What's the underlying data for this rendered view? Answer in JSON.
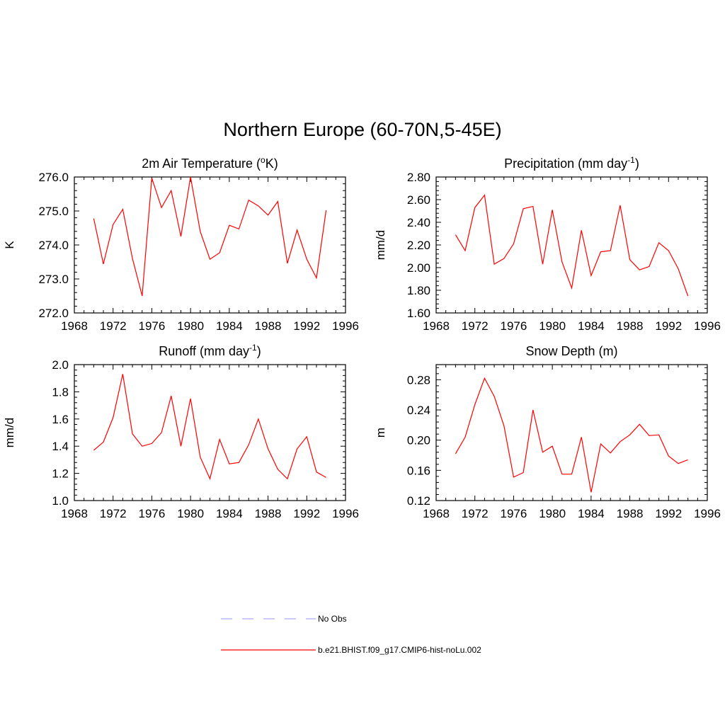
{
  "title": "Northern Europe (60-70N,5-45E)",
  "legend": [
    {
      "label": "No Obs",
      "color": "#aaaaff",
      "dash": true
    },
    {
      "label": "b.e21.BHIST.f09_g17.CMIP6-hist-noLu.002",
      "color": "#ff0000",
      "dash": false
    }
  ],
  "chart_data": [
    {
      "type": "line",
      "title": "2m Air Temperature (",
      "title_sup": "o",
      "title_tail": "K)",
      "ylabel": "K",
      "xlim": [
        1968,
        1996
      ],
      "ylim": [
        272.0,
        276.0
      ],
      "yticks": [
        272.0,
        273.0,
        274.0,
        275.0,
        276.0
      ],
      "ytick_labels": [
        "272.0",
        "273.0",
        "274.0",
        "275.0",
        "276.0"
      ],
      "xticks": [
        1968,
        1972,
        1976,
        1980,
        1984,
        1988,
        1992,
        1996
      ],
      "series": [
        {
          "color": "#ff0000",
          "x": [
            1970,
            1971,
            1972,
            1973,
            1974,
            1975,
            1976,
            1977,
            1978,
            1979,
            1980,
            1981,
            1982,
            1983,
            1984,
            1985,
            1986,
            1987,
            1988,
            1989,
            1990,
            1991,
            1992,
            1993,
            1994
          ],
          "values": [
            274.78,
            273.44,
            274.6,
            275.05,
            273.6,
            272.5,
            275.97,
            275.1,
            275.6,
            274.25,
            276.0,
            274.4,
            273.58,
            273.77,
            274.58,
            274.47,
            275.32,
            275.15,
            274.88,
            275.28,
            273.46,
            274.44,
            273.58,
            273.03,
            275.02
          ]
        }
      ]
    },
    {
      "type": "line",
      "title": "Precipitation (mm day",
      "title_sup": "-1",
      "title_tail": ")",
      "ylabel": "mm/d",
      "xlim": [
        1968,
        1996
      ],
      "ylim": [
        1.6,
        2.8
      ],
      "yticks": [
        1.6,
        1.8,
        2.0,
        2.2,
        2.4,
        2.6,
        2.8
      ],
      "ytick_labels": [
        "1.60",
        "1.80",
        "2.00",
        "2.20",
        "2.40",
        "2.60",
        "2.80"
      ],
      "xticks": [
        1968,
        1972,
        1976,
        1980,
        1984,
        1988,
        1992,
        1996
      ],
      "series": [
        {
          "color": "#ff0000",
          "x": [
            1970,
            1971,
            1972,
            1973,
            1974,
            1975,
            1976,
            1977,
            1978,
            1979,
            1980,
            1981,
            1982,
            1983,
            1984,
            1985,
            1986,
            1987,
            1988,
            1989,
            1990,
            1991,
            1992,
            1993,
            1994
          ],
          "values": [
            2.29,
            2.15,
            2.53,
            2.64,
            2.03,
            2.08,
            2.21,
            2.52,
            2.54,
            2.03,
            2.51,
            2.05,
            1.82,
            2.33,
            1.93,
            2.14,
            2.15,
            2.55,
            2.07,
            1.98,
            2.01,
            2.22,
            2.15,
            1.99,
            1.75
          ]
        }
      ]
    },
    {
      "type": "line",
      "title": "Runoff (mm day",
      "title_sup": "-1",
      "title_tail": ")",
      "ylabel": "mm/d",
      "xlim": [
        1968,
        1996
      ],
      "ylim": [
        1.0,
        2.0
      ],
      "yticks": [
        1.0,
        1.2,
        1.4,
        1.6,
        1.8,
        2.0
      ],
      "ytick_labels": [
        "1.0",
        "1.2",
        "1.4",
        "1.6",
        "1.8",
        "2.0"
      ],
      "xticks": [
        1968,
        1972,
        1976,
        1980,
        1984,
        1988,
        1992,
        1996
      ],
      "series": [
        {
          "color": "#ff0000",
          "x": [
            1970,
            1971,
            1972,
            1973,
            1974,
            1975,
            1976,
            1977,
            1978,
            1979,
            1980,
            1981,
            1982,
            1983,
            1984,
            1985,
            1986,
            1987,
            1988,
            1989,
            1990,
            1991,
            1992,
            1993,
            1994
          ],
          "values": [
            1.37,
            1.43,
            1.61,
            1.93,
            1.49,
            1.4,
            1.42,
            1.5,
            1.77,
            1.4,
            1.75,
            1.32,
            1.16,
            1.45,
            1.27,
            1.28,
            1.41,
            1.6,
            1.38,
            1.23,
            1.16,
            1.38,
            1.47,
            1.21,
            1.17
          ]
        }
      ]
    },
    {
      "type": "line",
      "title": "Snow Depth (m)",
      "title_sup": "",
      "title_tail": "",
      "ylabel": "m",
      "xlim": [
        1968,
        1996
      ],
      "ylim": [
        0.12,
        0.3
      ],
      "yticks": [
        0.12,
        0.16,
        0.2,
        0.24,
        0.28
      ],
      "ytick_labels": [
        "0.12",
        "0.16",
        "0.20",
        "0.24",
        "0.28"
      ],
      "xticks": [
        1968,
        1972,
        1976,
        1980,
        1984,
        1988,
        1992,
        1996
      ],
      "series": [
        {
          "color": "#ff0000",
          "x": [
            1970,
            1971,
            1972,
            1973,
            1974,
            1975,
            1976,
            1977,
            1978,
            1979,
            1980,
            1981,
            1982,
            1983,
            1984,
            1985,
            1986,
            1987,
            1988,
            1989,
            1990,
            1991,
            1992,
            1993,
            1994
          ],
          "values": [
            0.182,
            0.204,
            0.247,
            0.282,
            0.258,
            0.219,
            0.151,
            0.157,
            0.24,
            0.184,
            0.192,
            0.155,
            0.155,
            0.204,
            0.131,
            0.195,
            0.183,
            0.198,
            0.207,
            0.221,
            0.206,
            0.207,
            0.179,
            0.169,
            0.174
          ]
        }
      ]
    }
  ]
}
